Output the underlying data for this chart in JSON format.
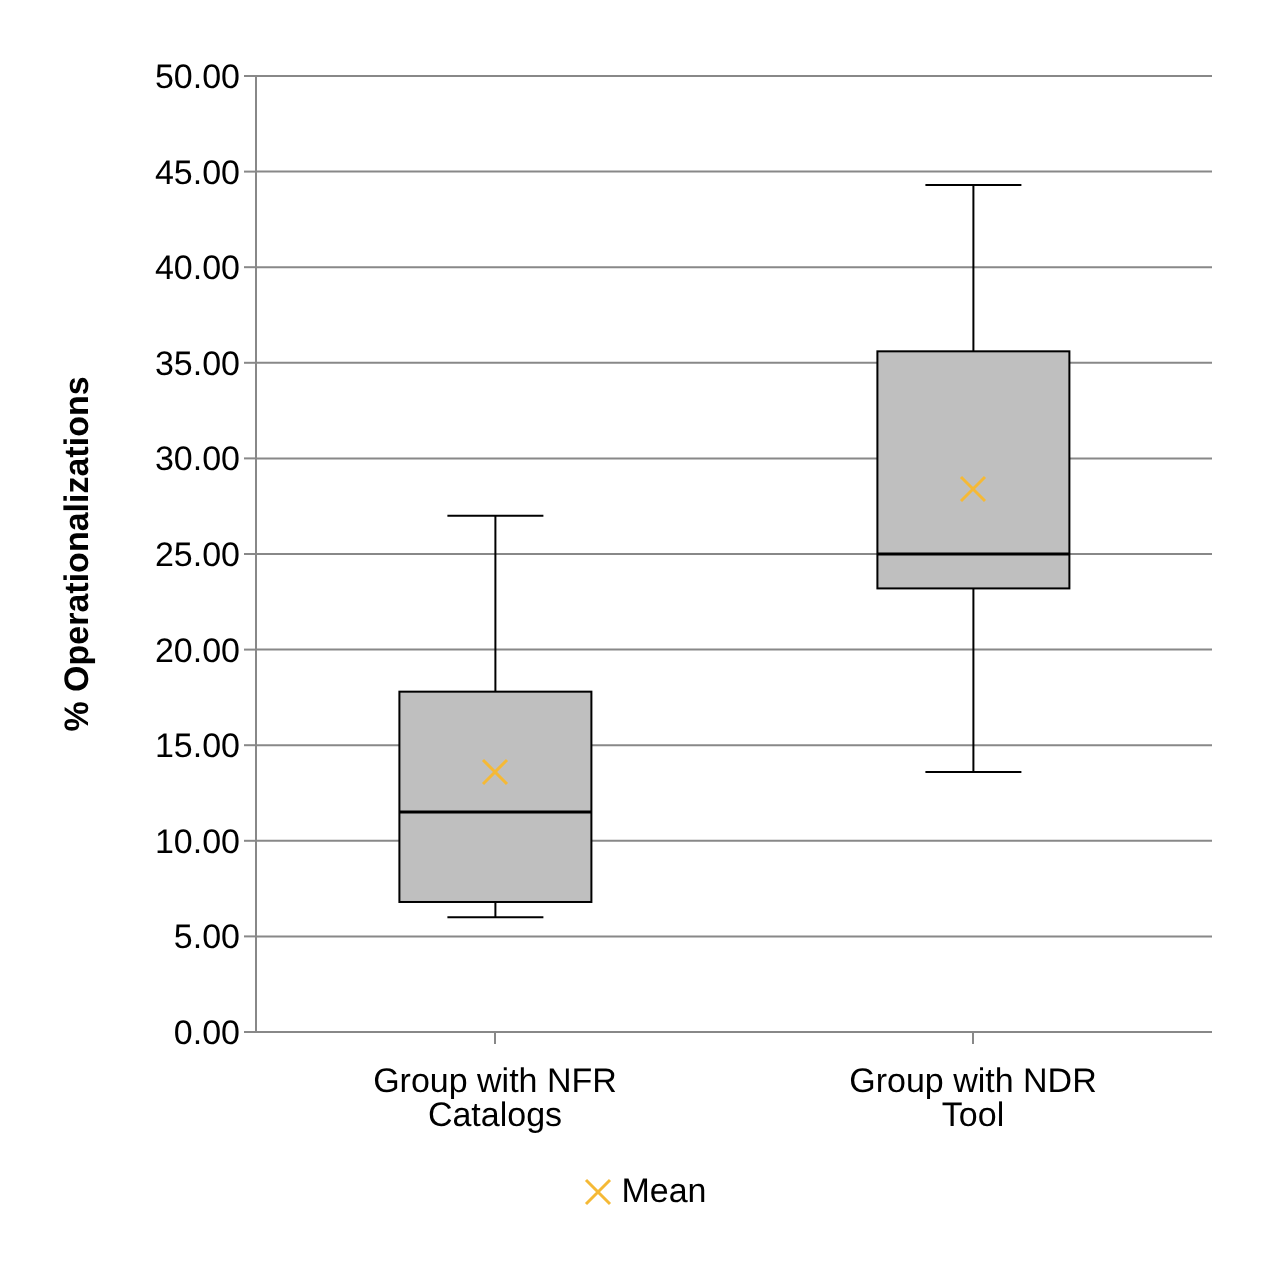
{
  "chart_data": {
    "type": "box",
    "ylabel": "% Operationalizations",
    "categories": [
      "Group with NFR Catalogs",
      "Group with NDR Tool"
    ],
    "boxes": [
      {
        "low": 6.0,
        "q1": 6.8,
        "median": 11.5,
        "q3": 17.8,
        "high": 27.0
      },
      {
        "low": 13.6,
        "q1": 23.2,
        "median": 25.0,
        "q3": 35.6,
        "high": 44.3
      }
    ],
    "color": "#bfbfbf",
    "series": [
      {
        "name": "Mean",
        "type": "scatter",
        "marker": "cross",
        "color": "#f5b936",
        "x": [
          "Group with NFR Catalogs",
          "Group with NDR Tool"
        ],
        "values": [
          13.6,
          28.4
        ]
      }
    ],
    "ylim": [
      0,
      50
    ],
    "yticks": [
      {
        "value": 0,
        "label": "0.00"
      },
      {
        "value": 5,
        "label": "5.00"
      },
      {
        "value": 10,
        "label": "10.00"
      },
      {
        "value": 15,
        "label": "15.00"
      },
      {
        "value": 20,
        "label": "20.00"
      },
      {
        "value": 25,
        "label": "25.00"
      },
      {
        "value": 30,
        "label": "30.00"
      },
      {
        "value": 35,
        "label": "35.00"
      },
      {
        "value": 40,
        "label": "40.00"
      },
      {
        "value": 45,
        "label": "45.00"
      },
      {
        "value": 50,
        "label": "50.00"
      }
    ],
    "grid": "y",
    "legend": "bottom"
  }
}
